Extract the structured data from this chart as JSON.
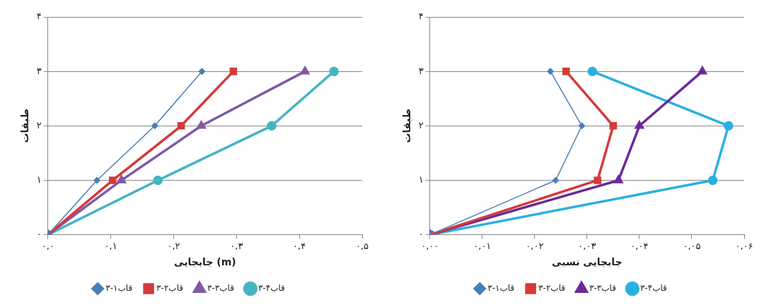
{
  "chart_data": [
    {
      "type": "line",
      "xlabel": "جابجایی (m)",
      "ylabel": "طبقات",
      "xlim": [
        0,
        0.5
      ],
      "ylim": [
        0,
        4
      ],
      "xticks": [
        {
          "value": 0,
          "label": "۰,۰"
        },
        {
          "value": 0.1,
          "label": "۰,۱"
        },
        {
          "value": 0.2,
          "label": "۰,۲"
        },
        {
          "value": 0.3,
          "label": "۰,۳"
        },
        {
          "value": 0.4,
          "label": "۰,۴"
        },
        {
          "value": 0.5,
          "label": "۰,۵"
        }
      ],
      "yticks": [
        {
          "value": 0,
          "label": "۰"
        },
        {
          "value": 1,
          "label": "۱"
        },
        {
          "value": 2,
          "label": "۲"
        },
        {
          "value": 3,
          "label": "۳"
        },
        {
          "value": 4,
          "label": "۴"
        }
      ],
      "grid": "y",
      "legend": "bottom",
      "line_style": "solid",
      "series": [
        {
          "name": "قاب۱-۳",
          "color": "#4a7ebb",
          "marker": "diamond",
          "x": [
            0,
            0.078,
            0.17,
            0.245
          ],
          "values": [
            0,
            1,
            2,
            3
          ]
        },
        {
          "name": "قاب۲-۳",
          "color": "#d43a3a",
          "marker": "square",
          "x": [
            0,
            0.103,
            0.212,
            0.295
          ],
          "values": [
            0,
            1,
            2,
            3
          ]
        },
        {
          "name": "قاب۳-۳",
          "color": "#7e5aa6",
          "marker": "triangle",
          "x": [
            0,
            0.117,
            0.244,
            0.409
          ],
          "values": [
            0,
            1,
            2,
            3
          ]
        },
        {
          "name": "قاب۴-۳",
          "color": "#45b4c2",
          "marker": "circle",
          "x": [
            0,
            0.175,
            0.356,
            0.455
          ],
          "values": [
            0,
            1,
            2,
            3
          ]
        }
      ]
    },
    {
      "type": "line",
      "xlabel": "جابجایی نسبی",
      "ylabel": "طبقات",
      "xlim": [
        0,
        0.06
      ],
      "ylim": [
        0,
        4
      ],
      "xticks": [
        {
          "value": 0,
          "label": "۰,۰۰"
        },
        {
          "value": 0.01,
          "label": "۰,۰۱"
        },
        {
          "value": 0.02,
          "label": "۰,۰۲"
        },
        {
          "value": 0.03,
          "label": "۰,۰۳"
        },
        {
          "value": 0.04,
          "label": "۰,۰۴"
        },
        {
          "value": 0.05,
          "label": "۰,۰۵"
        },
        {
          "value": 0.06,
          "label": "۰,۰۶"
        }
      ],
      "yticks": [
        {
          "value": 0,
          "label": "۰"
        },
        {
          "value": 1,
          "label": "۱"
        },
        {
          "value": 2,
          "label": "۲"
        },
        {
          "value": 3,
          "label": "۳"
        },
        {
          "value": 4,
          "label": "۴"
        }
      ],
      "grid": "y",
      "legend": "bottom",
      "line_style": "solid",
      "series": [
        {
          "name": "قاب۱-۳",
          "color": "#4a7ebb",
          "marker": "diamond",
          "x": [
            0,
            0.024,
            0.029,
            0.023
          ],
          "values": [
            0,
            1,
            2,
            3
          ]
        },
        {
          "name": "قاب۲-۳",
          "color": "#d43a3a",
          "marker": "square",
          "x": [
            0,
            0.032,
            0.035,
            0.026
          ],
          "values": [
            0,
            1,
            2,
            3
          ]
        },
        {
          "name": "قاب۳-۳",
          "color": "#6a2a9a",
          "marker": "triangle",
          "x": [
            0,
            0.036,
            0.04,
            0.052
          ],
          "values": [
            0,
            1,
            2,
            3
          ]
        },
        {
          "name": "قاب۴-۳",
          "color": "#2ab0e0",
          "marker": "circle",
          "x": [
            0,
            0.054,
            0.057,
            0.031
          ],
          "values": [
            0,
            1,
            2,
            3
          ]
        }
      ]
    }
  ]
}
